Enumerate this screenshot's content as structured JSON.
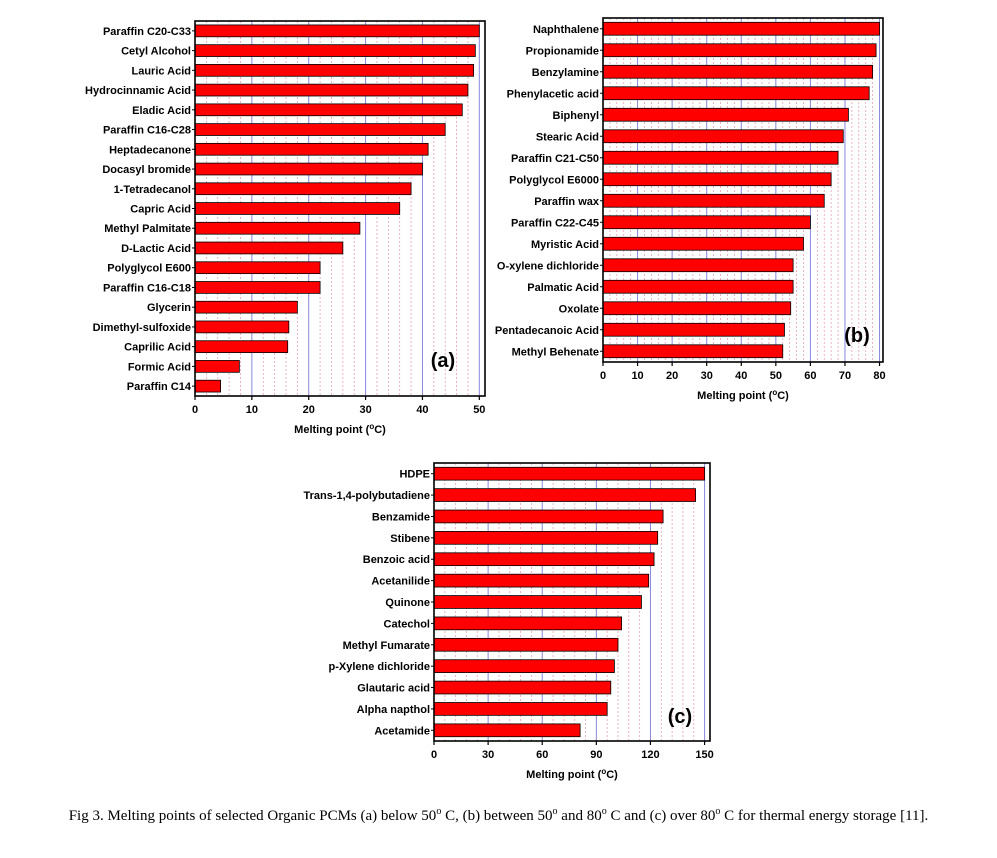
{
  "chart_data": [
    {
      "type": "bar",
      "orientation": "horizontal",
      "panel_label": "(a)",
      "xlabel_pre": "Melting point (",
      "xlabel_sup": "o",
      "xlabel_post": "C)",
      "xlim": [
        0,
        51
      ],
      "xticks": [
        0,
        10,
        20,
        30,
        40,
        50
      ],
      "grid": true,
      "bar_color": "#ff0000",
      "categories": [
        "Paraffin C20-C33",
        "Cetyl Alcohol",
        "Lauric Acid",
        "Hydrocinnamic Acid",
        "Eladic Acid",
        "Paraffin C16-C28",
        "Heptadecanone",
        "Docasyl bromide",
        "1-Tetradecanol",
        "Capric Acid",
        "Methyl Palmitate",
        "D-Lactic Acid",
        "Polyglycol E600",
        "Paraffin C16-C18",
        "Glycerin",
        "Dimethyl-sulfoxide",
        "Caprilic Acid",
        "Formic Acid",
        "Paraffin C14"
      ],
      "values": [
        50,
        49.3,
        49,
        48,
        47,
        44,
        41,
        40,
        38,
        36,
        29,
        26,
        22,
        22,
        18,
        16.5,
        16.3,
        7.8,
        4.5
      ]
    },
    {
      "type": "bar",
      "orientation": "horizontal",
      "panel_label": "(b)",
      "xlabel_pre": "Melting point (",
      "xlabel_sup": "o",
      "xlabel_post": "C)",
      "xlim": [
        0,
        81
      ],
      "xticks": [
        0,
        10,
        20,
        30,
        40,
        50,
        60,
        70,
        80
      ],
      "grid": true,
      "bar_color": "#ff0000",
      "categories": [
        "Naphthalene",
        "Propionamide",
        "Benzylamine",
        "Phenylacetic acid",
        "Biphenyl",
        "Stearic Acid",
        "Paraffin C21-C50",
        "Polyglycol E6000",
        "Paraffin wax",
        "Paraffin C22-C45",
        "Myristic Acid",
        "O-xylene dichloride",
        "Palmatic Acid",
        "Oxolate",
        "Pentadecanoic Acid",
        "Methyl Behenate"
      ],
      "values": [
        80,
        79,
        78,
        77,
        71,
        69.5,
        68,
        66,
        64,
        60,
        58,
        55,
        55,
        54.3,
        52.5,
        52
      ]
    },
    {
      "type": "bar",
      "orientation": "horizontal",
      "panel_label": "(c)",
      "xlabel_pre": "Melting point (",
      "xlabel_sup": "o",
      "xlabel_post": "C)",
      "xlim": [
        0,
        153
      ],
      "xticks": [
        0,
        30,
        60,
        90,
        120,
        150
      ],
      "grid": true,
      "bar_color": "#ff0000",
      "categories": [
        "HDPE",
        "Trans-1,4-polybutadiene",
        "Benzamide",
        "Stibene",
        "Benzoic acid",
        "Acetanilide",
        "Quinone",
        "Catechol",
        "Methyl Fumarate",
        "p-Xylene dichloride",
        "Glautaric acid",
        "Alpha napthol",
        "Acetamide"
      ],
      "values": [
        150,
        145,
        127,
        124,
        122,
        119,
        115,
        104,
        102,
        100,
        98,
        96,
        81
      ]
    }
  ],
  "caption": {
    "part1": "Fig 3. Melting points of selected Organic PCMs (a) below 50",
    "sup1": "o",
    "part2": " C, (b) between 50",
    "sup2": "o",
    "part3": " and 80",
    "sup3": "o",
    "part4": " C and (c) over 80",
    "sup4": "o",
    "part5": " C for thermal energy storage [11]."
  }
}
